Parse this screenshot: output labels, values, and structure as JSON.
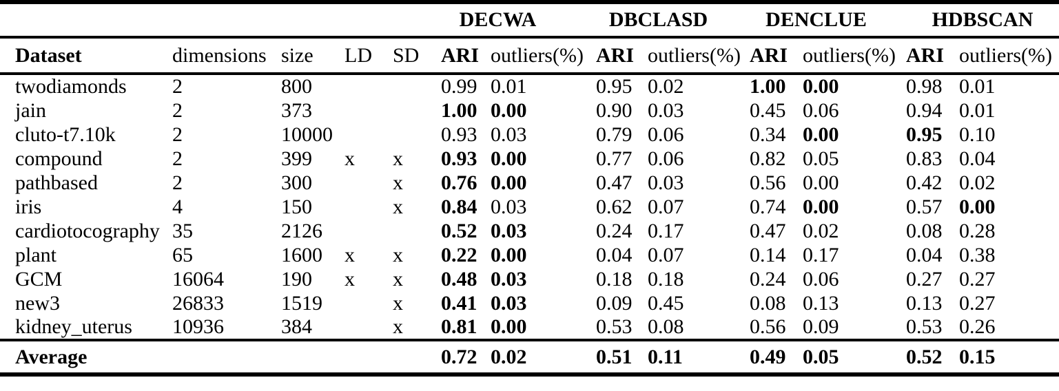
{
  "colors": {
    "background": "#ffffff",
    "text": "#000000",
    "rule": "#000000"
  },
  "table": {
    "algorithms": [
      "DECWA",
      "DBCLASD",
      "DENCLUE",
      "HDBSCAN"
    ],
    "columns": {
      "dataset": "Dataset",
      "dimensions": "dimensions",
      "size": "size",
      "ld": "LD",
      "sd": "SD",
      "ari": "ARI",
      "outliers": "outliers(%)"
    },
    "rows": [
      {
        "dataset": "twodiamonds",
        "dimensions": "2",
        "size": "800",
        "ld": "",
        "sd": "",
        "results": [
          {
            "ari": "0.99",
            "b_ari": false,
            "out": "0.01",
            "b_out": false
          },
          {
            "ari": "0.95",
            "b_ari": false,
            "out": "0.02",
            "b_out": false
          },
          {
            "ari": "1.00",
            "b_ari": true,
            "out": "0.00",
            "b_out": true
          },
          {
            "ari": "0.98",
            "b_ari": false,
            "out": "0.01",
            "b_out": false
          }
        ]
      },
      {
        "dataset": "jain",
        "dimensions": "2",
        "size": "373",
        "ld": "",
        "sd": "",
        "results": [
          {
            "ari": "1.00",
            "b_ari": true,
            "out": "0.00",
            "b_out": true
          },
          {
            "ari": "0.90",
            "b_ari": false,
            "out": "0.03",
            "b_out": false
          },
          {
            "ari": "0.45",
            "b_ari": false,
            "out": "0.06",
            "b_out": false
          },
          {
            "ari": "0.94",
            "b_ari": false,
            "out": "0.01",
            "b_out": false
          }
        ]
      },
      {
        "dataset": "cluto-t7.10k",
        "dimensions": "2",
        "size": "10000",
        "ld": "",
        "sd": "",
        "results": [
          {
            "ari": "0.93",
            "b_ari": false,
            "out": "0.03",
            "b_out": false
          },
          {
            "ari": "0.79",
            "b_ari": false,
            "out": "0.06",
            "b_out": false
          },
          {
            "ari": "0.34",
            "b_ari": false,
            "out": "0.00",
            "b_out": true
          },
          {
            "ari": "0.95",
            "b_ari": true,
            "out": "0.10",
            "b_out": false
          }
        ]
      },
      {
        "dataset": "compound",
        "dimensions": "2",
        "size": "399",
        "ld": "x",
        "sd": "x",
        "results": [
          {
            "ari": "0.93",
            "b_ari": true,
            "out": "0.00",
            "b_out": true
          },
          {
            "ari": "0.77",
            "b_ari": false,
            "out": "0.06",
            "b_out": false
          },
          {
            "ari": "0.82",
            "b_ari": false,
            "out": "0.05",
            "b_out": false
          },
          {
            "ari": "0.83",
            "b_ari": false,
            "out": "0.04",
            "b_out": false
          }
        ]
      },
      {
        "dataset": "pathbased",
        "dimensions": "2",
        "size": "300",
        "ld": "",
        "sd": "x",
        "results": [
          {
            "ari": "0.76",
            "b_ari": true,
            "out": "0.00",
            "b_out": true
          },
          {
            "ari": "0.47",
            "b_ari": false,
            "out": "0.03",
            "b_out": false
          },
          {
            "ari": "0.56",
            "b_ari": false,
            "out": "0.00",
            "b_out": false
          },
          {
            "ari": "0.42",
            "b_ari": false,
            "out": "0.02",
            "b_out": false
          }
        ]
      },
      {
        "dataset": "iris",
        "dimensions": "4",
        "size": "150",
        "ld": "",
        "sd": "x",
        "results": [
          {
            "ari": "0.84",
            "b_ari": true,
            "out": "0.03",
            "b_out": false
          },
          {
            "ari": "0.62",
            "b_ari": false,
            "out": "0.07",
            "b_out": false
          },
          {
            "ari": "0.74",
            "b_ari": false,
            "out": "0.00",
            "b_out": true
          },
          {
            "ari": "0.57",
            "b_ari": false,
            "out": "0.00",
            "b_out": true
          }
        ]
      },
      {
        "dataset": "cardiotocography",
        "dimensions": "35",
        "size": "2126",
        "ld": "",
        "sd": "",
        "results": [
          {
            "ari": "0.52",
            "b_ari": true,
            "out": "0.03",
            "b_out": true
          },
          {
            "ari": "0.24",
            "b_ari": false,
            "out": "0.17",
            "b_out": false
          },
          {
            "ari": "0.47",
            "b_ari": false,
            "out": "0.02",
            "b_out": false
          },
          {
            "ari": "0.08",
            "b_ari": false,
            "out": "0.28",
            "b_out": false
          }
        ]
      },
      {
        "dataset": "plant",
        "dimensions": "65",
        "size": "1600",
        "ld": "x",
        "sd": "x",
        "results": [
          {
            "ari": "0.22",
            "b_ari": true,
            "out": "0.00",
            "b_out": true
          },
          {
            "ari": "0.04",
            "b_ari": false,
            "out": "0.07",
            "b_out": false
          },
          {
            "ari": "0.14",
            "b_ari": false,
            "out": "0.17",
            "b_out": false
          },
          {
            "ari": "0.04",
            "b_ari": false,
            "out": "0.38",
            "b_out": false
          }
        ]
      },
      {
        "dataset": "GCM",
        "dimensions": "16064",
        "size": "190",
        "ld": "x",
        "sd": "x",
        "results": [
          {
            "ari": "0.48",
            "b_ari": true,
            "out": "0.03",
            "b_out": true
          },
          {
            "ari": "0.18",
            "b_ari": false,
            "out": "0.18",
            "b_out": false
          },
          {
            "ari": "0.24",
            "b_ari": false,
            "out": "0.06",
            "b_out": false
          },
          {
            "ari": "0.27",
            "b_ari": false,
            "out": "0.27",
            "b_out": false
          }
        ]
      },
      {
        "dataset": "new3",
        "dimensions": "26833",
        "size": "1519",
        "ld": "",
        "sd": "x",
        "results": [
          {
            "ari": "0.41",
            "b_ari": true,
            "out": "0.03",
            "b_out": true
          },
          {
            "ari": "0.09",
            "b_ari": false,
            "out": "0.45",
            "b_out": false
          },
          {
            "ari": "0.08",
            "b_ari": false,
            "out": "0.13",
            "b_out": false
          },
          {
            "ari": "0.13",
            "b_ari": false,
            "out": "0.27",
            "b_out": false
          }
        ]
      },
      {
        "dataset": "kidney_uterus",
        "dimensions": "10936",
        "size": "384",
        "ld": "",
        "sd": "x",
        "results": [
          {
            "ari": "0.81",
            "b_ari": true,
            "out": "0.00",
            "b_out": true
          },
          {
            "ari": "0.53",
            "b_ari": false,
            "out": "0.08",
            "b_out": false
          },
          {
            "ari": "0.56",
            "b_ari": false,
            "out": "0.09",
            "b_out": false
          },
          {
            "ari": "0.53",
            "b_ari": false,
            "out": "0.26",
            "b_out": false
          }
        ]
      }
    ],
    "average": {
      "label": "Average",
      "results": [
        {
          "ari": "0.72",
          "b_ari": true,
          "out": "0.02",
          "b_out": true
        },
        {
          "ari": "0.51",
          "b_ari": true,
          "out": "0.11",
          "b_out": true
        },
        {
          "ari": "0.49",
          "b_ari": true,
          "out": "0.05",
          "b_out": true
        },
        {
          "ari": "0.52",
          "b_ari": true,
          "out": "0.15",
          "b_out": true
        }
      ]
    }
  }
}
